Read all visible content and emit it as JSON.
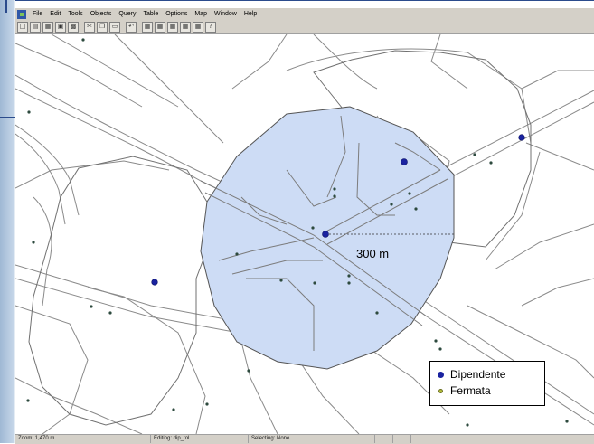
{
  "menu": {
    "items": [
      "File",
      "Edit",
      "Tools",
      "Objects",
      "Query",
      "Table",
      "Options",
      "Map",
      "Window",
      "Help"
    ]
  },
  "toolbar": {
    "buttons": [
      "new-icon",
      "open-icon",
      "open-table-icon",
      "save-icon",
      "print-icon",
      "cut-icon",
      "copy-icon",
      "paste-icon",
      "undo-icon",
      "new-browser-icon",
      "new-mapper-icon",
      "new-grapher-icon",
      "new-layout-icon",
      "redistrict-icon",
      "help-pointer-icon"
    ]
  },
  "map": {
    "radius_label": "300 m",
    "buffer_color": "#cddcf5",
    "dipendente_color": "#1a23a0",
    "fermata_color": "#b5bf3a"
  },
  "legend": {
    "dipendente": "Dipendente",
    "fermata": "Fermata"
  },
  "status": {
    "zoom": "Zoom: 1,470 m",
    "editing": "Editing: dip_tol",
    "selecting": "Selecting: None"
  }
}
